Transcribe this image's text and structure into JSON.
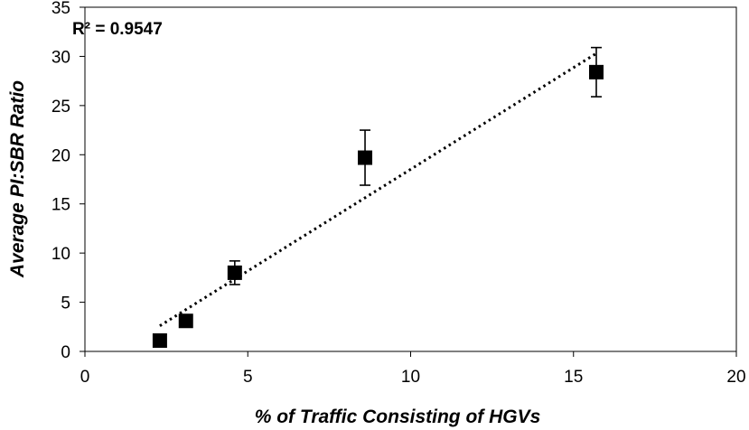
{
  "chart_data": {
    "type": "scatter",
    "title": "",
    "xlabel": "% of Traffic Consisting of HGVs",
    "ylabel": "Average PI:SBR Ratio",
    "xlim": [
      0,
      20
    ],
    "ylim": [
      0,
      35
    ],
    "xticks": [
      0,
      5,
      10,
      15,
      20
    ],
    "yticks": [
      0,
      5,
      10,
      15,
      20,
      25,
      30,
      35
    ],
    "grid": false,
    "series": [
      {
        "name": "Average PI:SBR Ratio",
        "marker": "square",
        "color": "#000000",
        "points": [
          {
            "x": 2.3,
            "y": 1.1,
            "err": null
          },
          {
            "x": 3.1,
            "y": 3.1,
            "err": null
          },
          {
            "x": 4.6,
            "y": 8.0,
            "err": 1.2
          },
          {
            "x": 8.6,
            "y": 19.7,
            "err": 2.8
          },
          {
            "x": 15.7,
            "y": 28.4,
            "err": 2.5
          }
        ]
      }
    ],
    "trendline": {
      "style": "dotted",
      "type": "linear",
      "x_start": 2.3,
      "x_end": 15.7,
      "y_start": 2.6,
      "y_end": 30.3
    },
    "annotation": {
      "text": "R² = 0.9547",
      "placement": "top-left"
    }
  }
}
